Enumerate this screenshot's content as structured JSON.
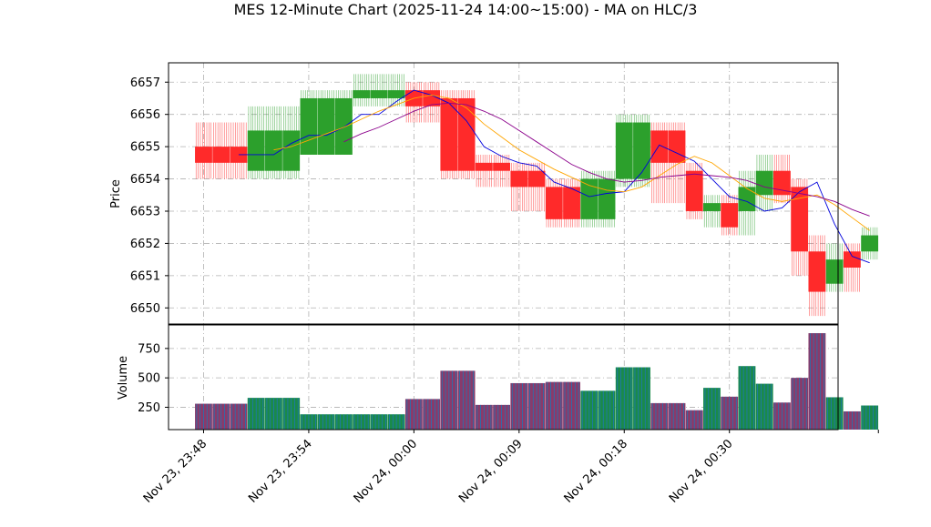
{
  "chart_data": {
    "type": "candlestick",
    "title": "MES 12-Minute Chart (2025-11-24 14:00~15:00) - MA on HLC/3",
    "price_panel": {
      "ylabel": "Price",
      "ylim": [
        6649.5,
        6657.6
      ],
      "yticks": [
        6650,
        6651,
        6652,
        6653,
        6654,
        6655,
        6656,
        6657
      ],
      "grid": true
    },
    "volume_panel": {
      "ylabel": "Volume",
      "ylim": [
        60,
        950
      ],
      "yticks": [
        250,
        500,
        750
      ],
      "grid": true
    },
    "x_axis": {
      "tick_labels": [
        "Nov 23, 23:48",
        "Nov 23, 23:54",
        "Nov 24, 00:00",
        "Nov 24, 00:09",
        "Nov 24, 00:18",
        "Nov 24, 00:30"
      ],
      "tick_index": [
        0,
        6,
        12,
        18,
        24,
        30
      ],
      "range_index": [
        -2,
        36.2
      ]
    },
    "colors": {
      "up": "#2ca02c",
      "down": "#ff2a2a",
      "ma_fast": "#0000dd",
      "ma_mid": "#ffa500",
      "ma_slow": "#8b008b",
      "volume_bar": "#1f77b4",
      "volume_edge": "#b22222",
      "grid": "#b0b0b0"
    },
    "candles": [
      {
        "open": 6655.0,
        "high": 6655.75,
        "low": 6654.0,
        "close": 6654.5,
        "volume": 280
      },
      {
        "open": 6655.0,
        "high": 6655.75,
        "low": 6654.0,
        "close": 6654.5,
        "volume": 280
      },
      {
        "open": 6655.0,
        "high": 6655.75,
        "low": 6654.0,
        "close": 6654.5,
        "volume": 280
      },
      {
        "open": 6654.25,
        "high": 6656.25,
        "low": 6654.0,
        "close": 6655.5,
        "volume": 330
      },
      {
        "open": 6654.25,
        "high": 6656.25,
        "low": 6654.0,
        "close": 6655.5,
        "volume": 330
      },
      {
        "open": 6654.25,
        "high": 6656.25,
        "low": 6654.0,
        "close": 6655.5,
        "volume": 330
      },
      {
        "open": 6654.75,
        "high": 6656.75,
        "low": 6654.75,
        "close": 6656.5,
        "volume": 190
      },
      {
        "open": 6654.75,
        "high": 6656.75,
        "low": 6654.75,
        "close": 6656.5,
        "volume": 190
      },
      {
        "open": 6654.75,
        "high": 6656.75,
        "low": 6654.75,
        "close": 6656.5,
        "volume": 190
      },
      {
        "open": 6656.5,
        "high": 6657.25,
        "low": 6656.25,
        "close": 6656.75,
        "volume": 190
      },
      {
        "open": 6656.5,
        "high": 6657.25,
        "low": 6656.25,
        "close": 6656.75,
        "volume": 190
      },
      {
        "open": 6656.5,
        "high": 6657.25,
        "low": 6656.25,
        "close": 6656.75,
        "volume": 190
      },
      {
        "open": 6656.75,
        "high": 6657.0,
        "low": 6655.75,
        "close": 6656.25,
        "volume": 320
      },
      {
        "open": 6656.75,
        "high": 6657.0,
        "low": 6655.75,
        "close": 6656.25,
        "volume": 320
      },
      {
        "open": 6656.5,
        "high": 6656.75,
        "low": 6654.0,
        "close": 6654.25,
        "volume": 560
      },
      {
        "open": 6656.5,
        "high": 6656.75,
        "low": 6654.0,
        "close": 6654.25,
        "volume": 560
      },
      {
        "open": 6654.5,
        "high": 6654.75,
        "low": 6653.75,
        "close": 6654.25,
        "volume": 270
      },
      {
        "open": 6654.5,
        "high": 6654.75,
        "low": 6653.75,
        "close": 6654.25,
        "volume": 270
      },
      {
        "open": 6654.25,
        "high": 6654.5,
        "low": 6653.0,
        "close": 6653.75,
        "volume": 455
      },
      {
        "open": 6654.25,
        "high": 6654.5,
        "low": 6653.0,
        "close": 6653.75,
        "volume": 455
      },
      {
        "open": 6653.75,
        "high": 6654.0,
        "low": 6652.5,
        "close": 6652.75,
        "volume": 465
      },
      {
        "open": 6653.75,
        "high": 6654.0,
        "low": 6652.5,
        "close": 6652.75,
        "volume": 465
      },
      {
        "open": 6652.75,
        "high": 6654.25,
        "low": 6652.5,
        "close": 6654.0,
        "volume": 390
      },
      {
        "open": 6652.75,
        "high": 6654.25,
        "low": 6652.5,
        "close": 6654.0,
        "volume": 390
      },
      {
        "open": 6654.0,
        "high": 6656.0,
        "low": 6653.75,
        "close": 6655.75,
        "volume": 590
      },
      {
        "open": 6654.0,
        "high": 6656.0,
        "low": 6653.75,
        "close": 6655.75,
        "volume": 590
      },
      {
        "open": 6655.5,
        "high": 6655.75,
        "low": 6653.25,
        "close": 6654.5,
        "volume": 285
      },
      {
        "open": 6655.5,
        "high": 6655.75,
        "low": 6653.25,
        "close": 6654.5,
        "volume": 285
      },
      {
        "open": 6654.25,
        "high": 6654.5,
        "low": 6652.75,
        "close": 6653.0,
        "volume": 225
      },
      {
        "open": 6653.0,
        "high": 6653.5,
        "low": 6652.5,
        "close": 6653.25,
        "volume": 415
      },
      {
        "open": 6653.25,
        "high": 6653.5,
        "low": 6652.25,
        "close": 6652.5,
        "volume": 340
      },
      {
        "open": 6653.0,
        "high": 6654.25,
        "low": 6652.25,
        "close": 6653.75,
        "volume": 600
      },
      {
        "open": 6653.5,
        "high": 6654.75,
        "low": 6653.0,
        "close": 6654.25,
        "volume": 450
      },
      {
        "open": 6654.25,
        "high": 6654.75,
        "low": 6653.25,
        "close": 6653.5,
        "volume": 290
      },
      {
        "open": 6653.75,
        "high": 6654.0,
        "low": 6651.0,
        "close": 6651.75,
        "volume": 500
      },
      {
        "open": 6651.75,
        "high": 6652.25,
        "low": 6649.75,
        "close": 6650.5,
        "volume": 880
      },
      {
        "open": 6650.75,
        "high": 6652.0,
        "low": 6650.5,
        "close": 6651.5,
        "volume": 335
      },
      {
        "open": 6651.75,
        "high": 6652.0,
        "low": 6650.5,
        "close": 6651.25,
        "volume": 215
      },
      {
        "open": 6651.75,
        "high": 6652.5,
        "low": 6651.5,
        "close": 6652.25,
        "volume": 265
      }
    ],
    "moving_averages": [
      {
        "color_key": "ma_fast",
        "values": [
          null,
          null,
          6654.75,
          6654.75,
          6654.75,
          6655.1,
          6655.35,
          6655.35,
          6655.6,
          6656.0,
          6656.0,
          6656.4,
          6656.75,
          6656.6,
          6656.35,
          6655.8,
          6655.0,
          6654.7,
          6654.5,
          6654.4,
          6653.9,
          6653.7,
          6653.45,
          6653.55,
          6653.6,
          6654.2,
          6655.05,
          6654.8,
          6654.55,
          6654.0,
          6653.45,
          6653.3,
          6653.0,
          6653.1,
          6653.6,
          6653.9,
          6652.6,
          6651.6,
          6651.4
        ]
      },
      {
        "color_key": "ma_mid",
        "values": [
          null,
          null,
          null,
          null,
          6654.9,
          6655.0,
          6655.2,
          6655.4,
          6655.6,
          6655.85,
          6656.1,
          6656.3,
          6656.5,
          6656.6,
          6656.5,
          6656.2,
          6655.7,
          6655.3,
          6654.9,
          6654.6,
          6654.3,
          6654.05,
          6653.8,
          6653.65,
          6653.6,
          6653.75,
          6654.1,
          6654.45,
          6654.7,
          6654.5,
          6654.1,
          6653.7,
          6653.4,
          6653.3,
          6653.4,
          6653.5,
          6653.2,
          6652.8,
          6652.4
        ]
      },
      {
        "color_key": "ma_slow",
        "values": [
          null,
          null,
          null,
          null,
          null,
          null,
          null,
          null,
          6655.15,
          6655.4,
          6655.6,
          6655.85,
          6656.1,
          6656.3,
          6656.35,
          6656.3,
          6656.1,
          6655.85,
          6655.5,
          6655.15,
          6654.8,
          6654.45,
          6654.2,
          6654.0,
          6653.9,
          6653.95,
          6654.05,
          6654.1,
          6654.15,
          6654.1,
          6654.05,
          6653.95,
          6653.75,
          6653.65,
          6653.55,
          6653.45,
          6653.3,
          6653.05,
          6652.85
        ]
      }
    ]
  }
}
